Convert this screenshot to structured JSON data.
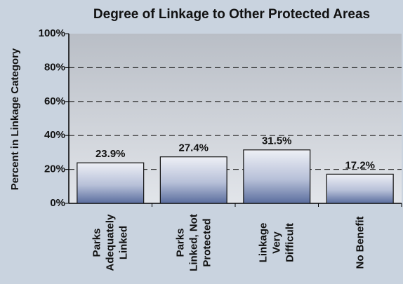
{
  "chart_data": {
    "type": "bar",
    "title": "Degree of Linkage to Other Protected Areas",
    "y_label": "Percent in Linkage Category",
    "categories": [
      "Parks\nAdequately\nLinked",
      "Parks\nLinked, Not\nProtected",
      "Linkage\nVery\nDifficult",
      "No Benefit"
    ],
    "values": [
      23.9,
      27.4,
      31.5,
      17.2
    ],
    "value_labels": [
      "23.9%",
      "27.4%",
      "31.5%",
      "17.2%"
    ],
    "color": "#5a6d9e",
    "ylim": [
      0,
      100
    ],
    "yticks": [
      {
        "value": 0,
        "label": "0%"
      },
      {
        "value": 20,
        "label": "20%"
      },
      {
        "value": 40,
        "label": "40%"
      },
      {
        "value": 60,
        "label": "60%"
      },
      {
        "value": 80,
        "label": "80%"
      },
      {
        "value": 100,
        "label": "100%"
      }
    ],
    "grid": true
  }
}
